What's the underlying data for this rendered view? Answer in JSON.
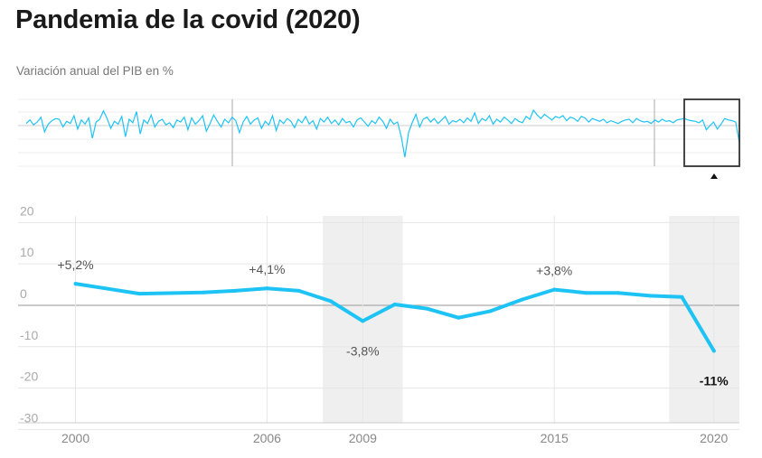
{
  "header": {
    "title": "Pandemia de la covid (2020)",
    "subtitle": "Variación anual del PIB en %"
  },
  "colors": {
    "line": "#1ec3f5",
    "shade": "#efefef",
    "grid": "#e6e6e6",
    "zero_line": "#aaaaaa",
    "navigator_box": "#333333"
  },
  "chart_data": [
    {
      "type": "line",
      "role": "navigator",
      "series": [
        {
          "values": [
            0.3,
            0.8,
            0.1,
            0.5,
            1.2,
            -0.9,
            0.2,
            0.7,
            1.0,
            0.9,
            -0.2,
            0.6,
            0.3,
            1.4,
            -0.5,
            0.8,
            0.2,
            1.1,
            -1.8,
            0.5,
            0.9,
            2.1,
            1.0,
            -0.4,
            0.6,
            0.2,
            1.3,
            -1.6,
            0.9,
            0.4,
            2.0,
            -1.2,
            0.8,
            0.3,
            1.5,
            -0.2,
            0.6,
            0.9,
            0.1,
            0.4,
            -0.3,
            0.8,
            0.5,
            1.2,
            -0.6,
            1.1,
            0.2,
            0.7,
            1.4,
            -0.8,
            0.3,
            1.5,
            0.6,
            -0.2,
            0.9,
            0.4,
            1.2,
            0.7,
            -1.0,
            0.5,
            1.3,
            0.2,
            0.8,
            1.1,
            -0.4,
            0.6,
            0.1,
            1.4,
            -0.7,
            0.8,
            0.3,
            1.0,
            0.6,
            -0.3,
            0.9,
            0.4,
            1.3,
            0.2,
            0.7,
            -0.5,
            1.0,
            0.5,
            1.2,
            0.3,
            0.8,
            0.1,
            1.0,
            0.4,
            0.6,
            -0.2,
            0.8,
            1.1,
            0.5,
            -0.1,
            0.7,
            0.3,
            1.2,
            0.6,
            -0.4,
            0.9,
            0.2,
            0.5,
            -1.5,
            -4.5,
            -1.0,
            0.4,
            1.6,
            -0.2,
            0.9,
            1.2,
            0.5,
            1.0,
            0.3,
            0.8,
            1.3,
            0.2,
            0.7,
            0.5,
            0.9,
            0.4,
            1.1,
            0.6,
            1.8,
            0.3,
            1.0,
            0.7,
            1.4,
            0.2,
            0.9,
            0.5,
            1.2,
            0.8,
            0.3,
            1.0,
            0.6,
            0.4,
            1.3,
            0.9,
            2.2,
            1.5,
            1.0,
            1.6,
            1.2,
            0.8,
            1.3,
            1.1,
            1.4,
            0.7,
            1.2,
            1.0,
            0.6,
            1.3,
            1.1,
            0.5,
            1.0,
            0.8,
            0.6,
            0.9,
            0.4,
            0.7,
            0.5,
            0.3,
            0.6,
            0.8,
            0.9,
            0.4,
            1.0,
            0.7,
            0.5,
            0.6,
            0.3,
            0.8,
            0.5,
            0.9,
            0.6,
            0.7,
            0.4,
            0.8,
            0.9,
            1.0,
            0.8,
            0.7,
            0.6,
            0.4,
            0.8,
            -0.6,
            0.0,
            0.5,
            -0.5,
            0.2,
            1.0,
            0.8,
            0.7,
            0.5,
            -2.5
          ],
          "ylim": [
            -6,
            4
          ]
        }
      ]
    },
    {
      "type": "line",
      "role": "main",
      "x": [
        2000,
        2002,
        2004,
        2005,
        2006,
        2007,
        2008,
        2009,
        2010,
        2011,
        2012,
        2013,
        2014,
        2015,
        2016,
        2017,
        2018,
        2019,
        2020
      ],
      "series": [
        {
          "values": [
            5.2,
            2.8,
            3.1,
            3.5,
            4.1,
            3.5,
            1.0,
            -3.8,
            0.2,
            -0.8,
            -3.0,
            -1.4,
            1.4,
            3.8,
            3.0,
            3.0,
            2.3,
            2.0,
            -11.0
          ]
        }
      ],
      "xlim": [
        1998.2,
        2020.8
      ],
      "ylim": [
        -31,
        24
      ],
      "y_ticks": [
        "20",
        "10",
        "0",
        "-10",
        "-20",
        "-30"
      ],
      "y_tick_values": [
        20,
        10,
        0,
        -10,
        -20,
        -30
      ],
      "x_ticks": [
        "2000",
        "2006",
        "2009",
        "2015",
        "2020"
      ],
      "x_tick_values": [
        2000,
        2006,
        2009,
        2015,
        2020
      ],
      "shaded_ranges": [
        [
          2007.75,
          2010.25
        ],
        [
          2018.6,
          2020.8
        ]
      ],
      "annotations": [
        {
          "x": 2000,
          "y": 5.2,
          "label": "+5,2%",
          "position": "above",
          "emphasis": false
        },
        {
          "x": 2006,
          "y": 4.1,
          "label": "+4,1%",
          "position": "above",
          "emphasis": false
        },
        {
          "x": 2009,
          "y": -3.8,
          "label": "-3,8%",
          "position": "below",
          "emphasis": false
        },
        {
          "x": 2015,
          "y": 3.8,
          "label": "+3,8%",
          "position": "above",
          "emphasis": false
        },
        {
          "x": 2020,
          "y": -11.0,
          "label": "-11%",
          "position": "below",
          "emphasis": true
        }
      ],
      "grid": true
    }
  ]
}
